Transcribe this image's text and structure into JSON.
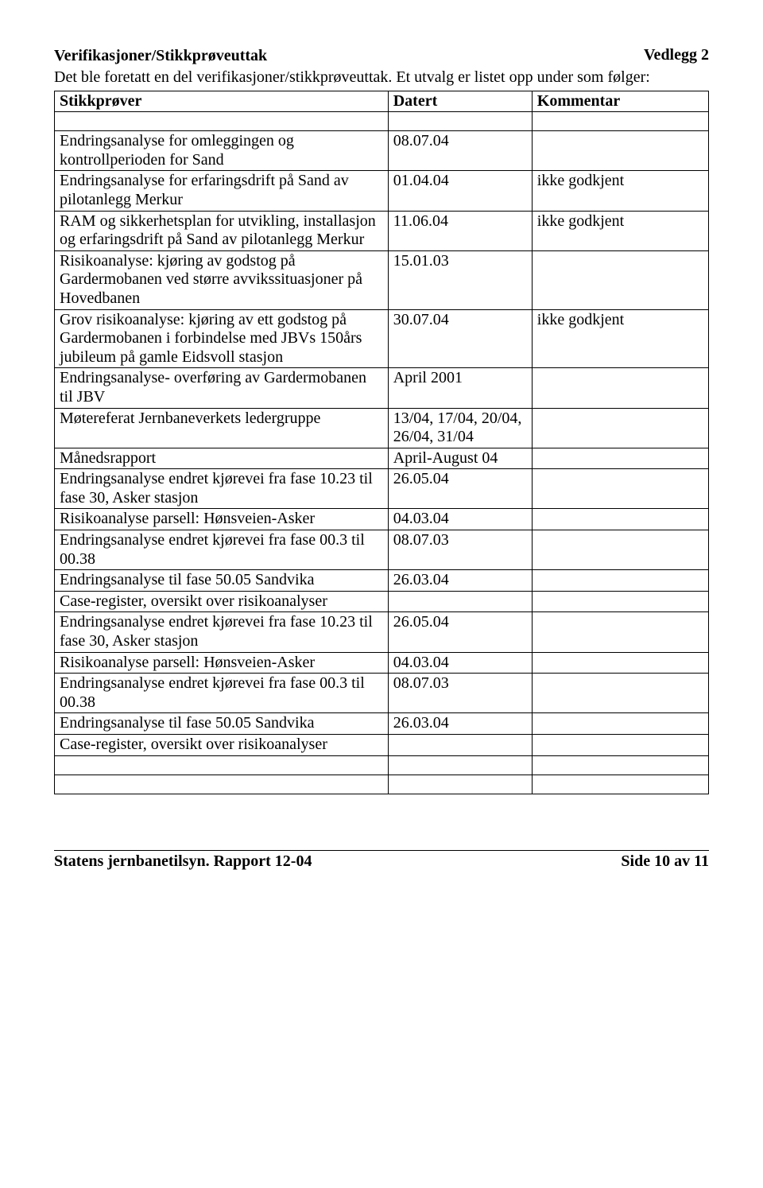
{
  "header": {
    "vedlegg": "Vedlegg 2",
    "section_title": "Verifikasjoner/Stikkprøveuttak",
    "intro": "Det ble foretatt en del verifikasjoner/stikkprøveuttak. Et utvalg er listet opp under som følger:"
  },
  "table": {
    "columns": {
      "stikkprover": "Stikkprøver",
      "datert": "Datert",
      "kommentar": "Kommentar"
    },
    "rows": [
      {
        "s": "Endringsanalyse for omleggingen og kontrollperioden for Sand",
        "d": "08.07.04",
        "k": ""
      },
      {
        "s": "Endringsanalyse for erfaringsdrift på Sand av pilotanlegg Merkur",
        "d": "01.04.04",
        "k": "ikke godkjent"
      },
      {
        "s": "RAM og sikkerhetsplan for utvikling, installasjon og erfaringsdrift på Sand av pilotanlegg Merkur",
        "d": "11.06.04",
        "k": "ikke godkjent"
      },
      {
        "s": "Risikoanalyse: kjøring av godstog på Gardermobanen ved større avvikssituasjoner på Hovedbanen",
        "d": "15.01.03",
        "k": ""
      },
      {
        "s": "Grov risikoanalyse: kjøring av ett godstog på Gardermobanen i forbindelse med JBVs 150års jubileum på gamle Eidsvoll stasjon",
        "d": "30.07.04",
        "k": "ikke godkjent"
      },
      {
        "s": "Endringsanalyse- overføring av Gardermobanen til JBV",
        "d": "April 2001",
        "k": ""
      },
      {
        "s": "Møtereferat Jernbaneverkets ledergruppe",
        "d": "13/04, 17/04, 20/04, 26/04, 31/04",
        "k": ""
      },
      {
        "s": "Månedsrapport",
        "d": "April-August 04",
        "k": ""
      },
      {
        "s": "Endringsanalyse endret kjørevei fra fase 10.23 til fase 30, Asker stasjon",
        "d": "26.05.04",
        "k": ""
      },
      {
        "s": "Risikoanalyse parsell: Hønsveien-Asker",
        "d": "04.03.04",
        "k": ""
      },
      {
        "s": "Endringsanalyse endret kjørevei fra fase 00.3 til 00.38",
        "d": "08.07.03",
        "k": ""
      },
      {
        "s": "Endringsanalyse til fase 50.05 Sandvika",
        "d": "26.03.04",
        "k": ""
      },
      {
        "s": "Case-register, oversikt over risikoanalyser",
        "d": "",
        "k": ""
      },
      {
        "s": "Endringsanalyse endret kjørevei fra fase 10.23 til fase 30, Asker stasjon",
        "d": "26.05.04",
        "k": ""
      },
      {
        "s": "Risikoanalyse parsell: Hønsveien-Asker",
        "d": "04.03.04",
        "k": ""
      },
      {
        "s": "Endringsanalyse endret kjørevei fra fase 00.3 til 00.38",
        "d": "08.07.03",
        "k": ""
      },
      {
        "s": "Endringsanalyse til fase 50.05 Sandvika",
        "d": "26.03.04",
        "k": ""
      },
      {
        "s": "Case-register, oversikt over risikoanalyser",
        "d": "",
        "k": ""
      }
    ]
  },
  "footer": {
    "left": "Statens jernbanetilsyn.  Rapport  12-04",
    "right": "Side 10 av 11"
  }
}
